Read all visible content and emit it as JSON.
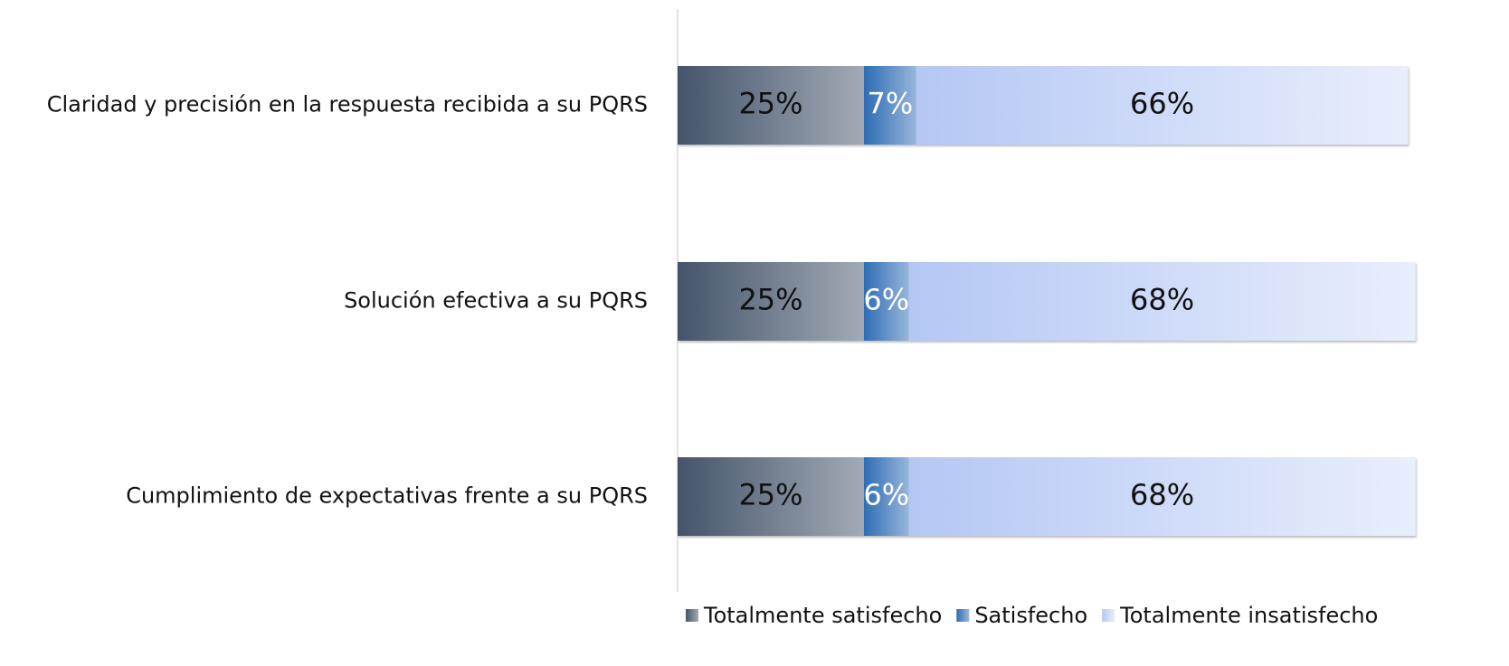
{
  "chart_data": {
    "type": "stacked_barh",
    "categories": [
      "Claridad y precisión en la respuesta recibida a su PQRS",
      "Solución efectiva a su PQRS",
      "Cumplimiento de expectativas frente a su PQRS"
    ],
    "series": [
      {
        "name": "Totalmente satisfecho",
        "color": "#44546a",
        "values": [
          25,
          25,
          25
        ],
        "value_labels": [
          "25%",
          "25%",
          "25%"
        ]
      },
      {
        "name": "Satisfecho",
        "color": "#2e6db4",
        "values": [
          7,
          6,
          6
        ],
        "value_labels": [
          "7%",
          "6%",
          "6%"
        ]
      },
      {
        "name": "Totalmente insatisfecho",
        "color": "#b4c7f4",
        "values": [
          66,
          68,
          68
        ],
        "value_labels": [
          "66%",
          "68%",
          "68%"
        ]
      }
    ],
    "xlim": [
      0,
      100
    ],
    "legend": "bottom"
  }
}
